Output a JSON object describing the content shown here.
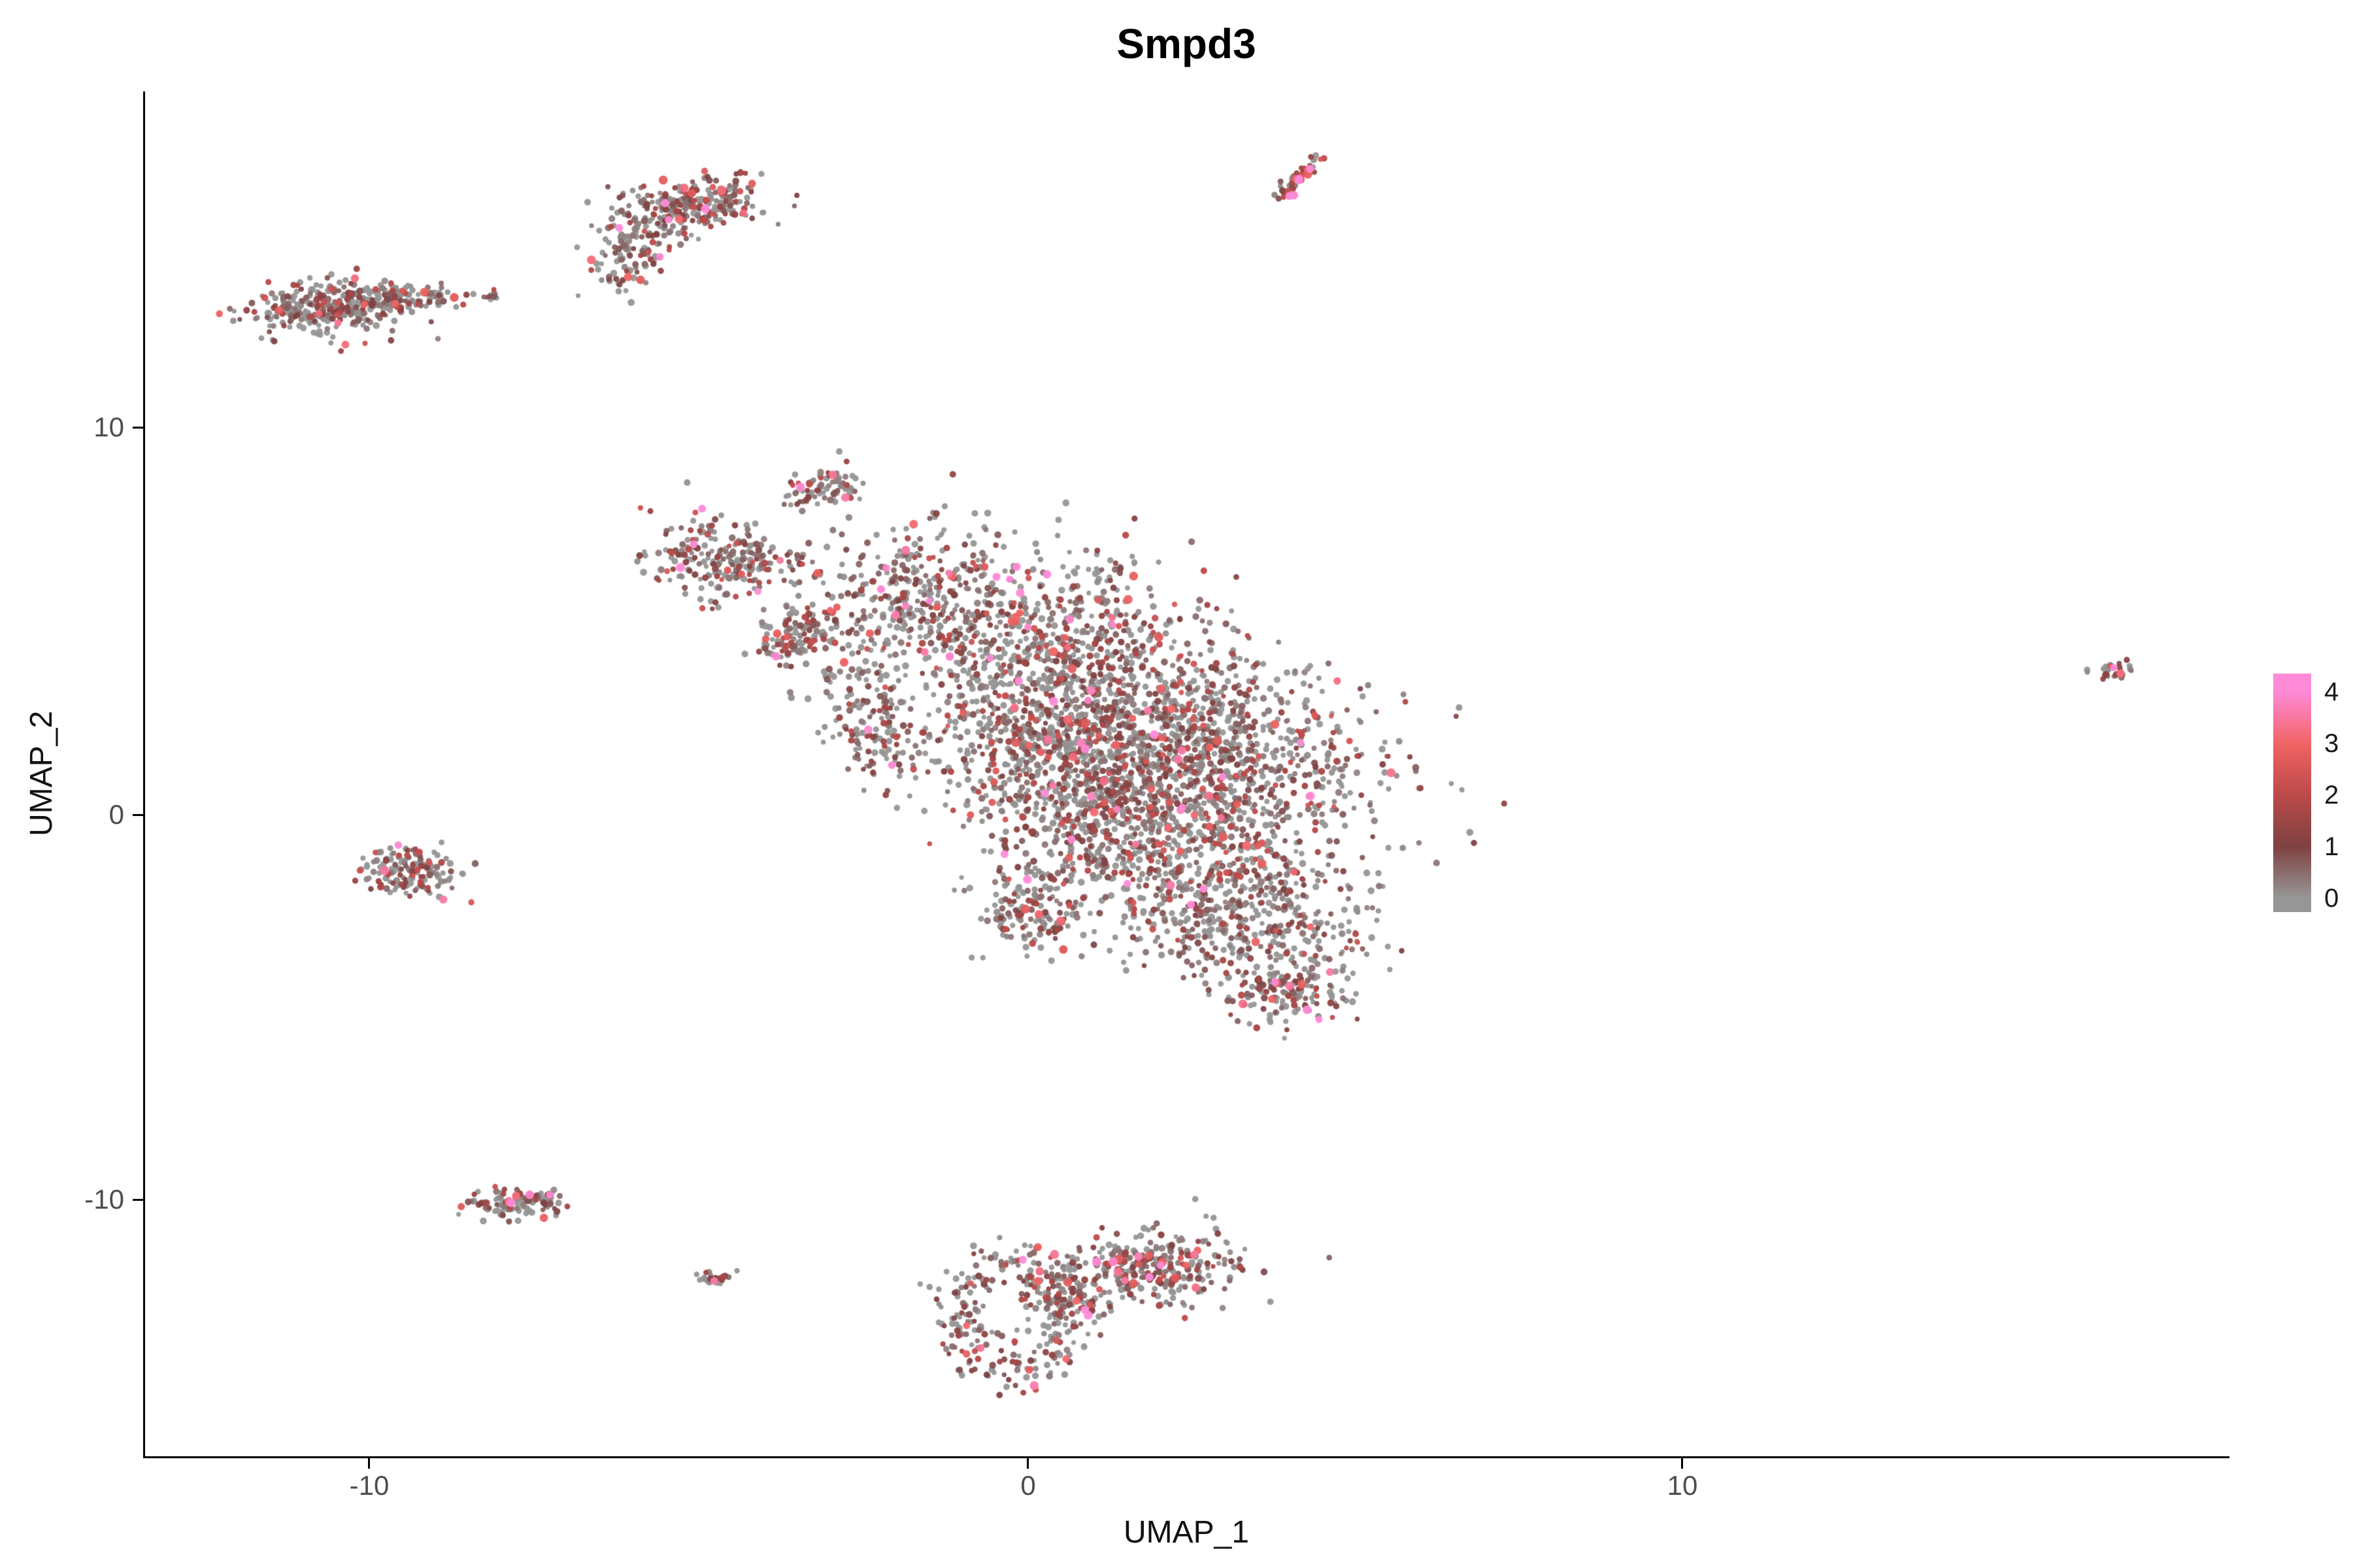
{
  "figure": {
    "title": "Smpd3"
  },
  "chart_data": {
    "type": "scatter",
    "title": "Smpd3",
    "xlabel": "UMAP_1",
    "ylabel": "UMAP_2",
    "x_ticks": [
      -10,
      0,
      10
    ],
    "y_ticks": [
      10,
      0,
      -10
    ],
    "xlim": [
      -13.4,
      18.3
    ],
    "ylim": [
      -16.6,
      18.7
    ],
    "grid": false,
    "legend_position": "right",
    "legend": {
      "labels": [
        4,
        3,
        2,
        1,
        0
      ]
    },
    "colorbar": {
      "stops": [
        {
          "value": 0,
          "color": "#969696"
        },
        {
          "value": 1,
          "color": "#7E4141"
        },
        {
          "value": 2,
          "color": "#BC4949"
        },
        {
          "value": 3,
          "color": "#F16464"
        },
        {
          "value": 4,
          "color": "#FF8AD8"
        }
      ]
    },
    "clusters": [
      {
        "name": "topleft-main",
        "type": "gauss",
        "n": 260,
        "cx": -10.75,
        "cy": 13.05,
        "sx": 0.55,
        "sy": 0.33,
        "rot": 0.1,
        "p0": 0.35,
        "scale": 0.8
      },
      {
        "name": "topleft-tail",
        "type": "gauss",
        "n": 130,
        "cx": -9.55,
        "cy": 13.35,
        "sx": 0.55,
        "sy": 0.18,
        "rot": 0.05,
        "p0": 0.35,
        "scale": 0.8
      },
      {
        "name": "topleft-dot",
        "type": "gauss",
        "n": 12,
        "cx": -8.15,
        "cy": 13.35,
        "sx": 0.08,
        "sy": 0.06,
        "rot": 0,
        "p0": 0.5,
        "scale": 0.6
      },
      {
        "name": "topmid-main",
        "type": "gauss",
        "n": 270,
        "cx": -5.2,
        "cy": 15.7,
        "sx": 0.55,
        "sy": 0.33,
        "rot": 0.3,
        "p0": 0.3,
        "scale": 0.9
      },
      {
        "name": "topmid-tail",
        "type": "gauss",
        "n": 100,
        "cx": -6.0,
        "cy": 14.5,
        "sx": 0.28,
        "sy": 0.5,
        "rot": -0.4,
        "p0": 0.3,
        "scale": 0.8
      },
      {
        "name": "top-streak",
        "type": "streak",
        "n": 55,
        "cx": 3.85,
        "cy": 15.9,
        "x2": 4.4,
        "y2": 16.95,
        "jitter": 0.06,
        "p0": 0.05,
        "scale": 1.6
      },
      {
        "name": "far-right-dot",
        "type": "gauss",
        "n": 28,
        "cx": 16.5,
        "cy": 3.65,
        "sx": 0.18,
        "sy": 0.15,
        "rot": 0.4,
        "p0": 0.2,
        "scale": 1.2
      },
      {
        "name": "left-mid",
        "type": "gauss",
        "n": 150,
        "cx": -9.4,
        "cy": -1.45,
        "sx": 0.38,
        "sy": 0.3,
        "rot": -0.2,
        "p0": 0.3,
        "scale": 0.9
      },
      {
        "name": "left-low",
        "type": "gauss",
        "n": 120,
        "cx": -7.75,
        "cy": -10.0,
        "sx": 0.4,
        "sy": 0.17,
        "rot": 0.15,
        "p0": 0.3,
        "scale": 0.9
      },
      {
        "name": "tiny-low",
        "type": "gauss",
        "n": 30,
        "cx": -4.75,
        "cy": -11.95,
        "sx": 0.12,
        "sy": 0.1,
        "rot": 0,
        "p0": 0.3,
        "scale": 0.8
      },
      {
        "name": "bottom-ring",
        "type": "ring",
        "n": 270,
        "cx": -0.25,
        "cy": -13.0,
        "r0": 0.85,
        "rw": 0.25,
        "aspect": 1.55,
        "p0": 0.3,
        "scale": 0.85
      },
      {
        "name": "bottom-right-lobe",
        "type": "gauss",
        "n": 300,
        "cx": 1.9,
        "cy": -11.7,
        "sx": 0.65,
        "sy": 0.5,
        "rot": 0.3,
        "p0": 0.3,
        "scale": 0.9
      },
      {
        "name": "bottom-connector",
        "type": "gauss",
        "n": 70,
        "cx": 0.6,
        "cy": -12.3,
        "sx": 0.35,
        "sy": 0.35,
        "rot": 0,
        "p0": 0.3,
        "scale": 0.85
      },
      {
        "name": "central-arm-top",
        "type": "gauss",
        "n": 230,
        "cx": -4.6,
        "cy": 6.6,
        "sx": 0.55,
        "sy": 0.5,
        "rot": -0.5,
        "p0": 0.3,
        "scale": 0.9
      },
      {
        "name": "central-arm-mid",
        "type": "gauss",
        "n": 120,
        "cx": -3.55,
        "cy": 4.6,
        "sx": 0.3,
        "sy": 0.45,
        "rot": -0.6,
        "p0": 0.3,
        "scale": 0.9
      },
      {
        "name": "central-top-bump",
        "type": "gauss",
        "n": 80,
        "cx": -3.15,
        "cy": 8.4,
        "sx": 0.35,
        "sy": 0.25,
        "rot": 0.2,
        "p0": 0.3,
        "scale": 0.85
      },
      {
        "name": "main-1",
        "type": "gauss",
        "n": 350,
        "cx": -1.6,
        "cy": 5.6,
        "sx": 0.8,
        "sy": 1.0,
        "rot": 0,
        "p0": 0.33,
        "scale": 0.85
      },
      {
        "name": "main-2",
        "type": "gauss",
        "n": 450,
        "cx": 0.4,
        "cy": 4.6,
        "sx": 1.1,
        "sy": 1.1,
        "rot": 0,
        "p0": 0.33,
        "scale": 0.85
      },
      {
        "name": "main-3",
        "type": "gauss",
        "n": 650,
        "cx": 1.6,
        "cy": 2.6,
        "sx": 1.4,
        "sy": 1.2,
        "rot": 0,
        "p0": 0.33,
        "scale": 0.85
      },
      {
        "name": "main-4",
        "type": "gauss",
        "n": 650,
        "cx": 3.0,
        "cy": 1.0,
        "sx": 1.3,
        "sy": 1.1,
        "rot": 0,
        "p0": 0.33,
        "scale": 0.85
      },
      {
        "name": "main-5",
        "type": "gauss",
        "n": 480,
        "cx": 1.0,
        "cy": 0.6,
        "sx": 1.1,
        "sy": 1.0,
        "rot": 0,
        "p0": 0.33,
        "scale": 0.85
      },
      {
        "name": "main-6",
        "type": "gauss",
        "n": 300,
        "cx": 0.1,
        "cy": 2.3,
        "sx": 0.8,
        "sy": 0.9,
        "rot": 0,
        "p0": 0.33,
        "scale": 0.85
      },
      {
        "name": "main-7",
        "type": "gauss",
        "n": 420,
        "cx": 2.2,
        "cy": -1.4,
        "sx": 1.1,
        "sy": 0.9,
        "rot": 0,
        "p0": 0.33,
        "scale": 0.85
      },
      {
        "name": "main-8",
        "type": "gauss",
        "n": 320,
        "cx": 3.5,
        "cy": -2.9,
        "sx": 0.9,
        "sy": 0.75,
        "rot": 0,
        "p0": 0.33,
        "scale": 0.85
      },
      {
        "name": "main-bottom-bump",
        "type": "gauss",
        "n": 140,
        "cx": 4.0,
        "cy": -4.6,
        "sx": 0.45,
        "sy": 0.4,
        "rot": 0,
        "p0": 0.33,
        "scale": 0.85
      },
      {
        "name": "main-lower-arm",
        "type": "gauss",
        "n": 140,
        "cx": 0.05,
        "cy": -2.4,
        "sx": 0.4,
        "sy": 0.55,
        "rot": 0,
        "p0": 0.33,
        "scale": 0.85
      },
      {
        "name": "main-left-edge",
        "type": "gauss",
        "n": 110,
        "cx": -2.2,
        "cy": 2.1,
        "sx": 0.3,
        "sy": 0.7,
        "rot": 0,
        "p0": 0.33,
        "scale": 0.85
      },
      {
        "name": "main-left-sparse",
        "type": "gauss",
        "n": 70,
        "cx": -2.7,
        "cy": 3.6,
        "sx": 0.45,
        "sy": 0.8,
        "rot": 0,
        "p0": 0.4,
        "scale": 0.8
      }
    ]
  }
}
